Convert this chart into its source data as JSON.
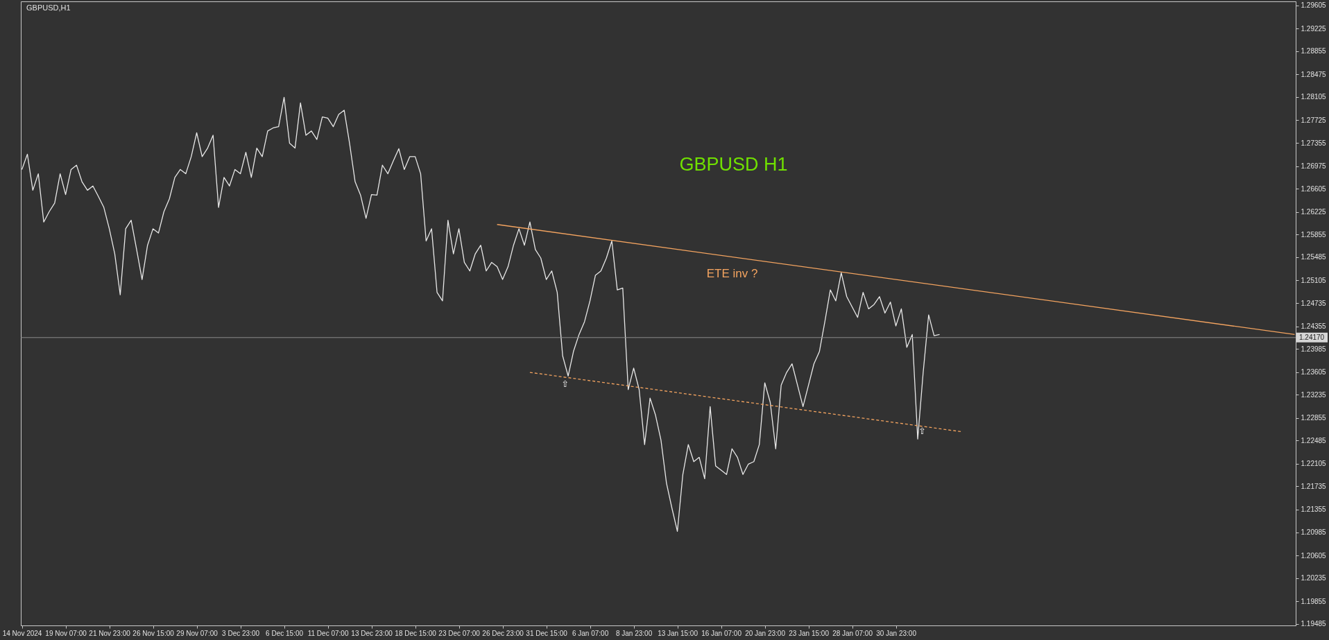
{
  "chart_data": {
    "type": "line",
    "title": "GBPUSD H1",
    "subtitle": "GBPUSD,H1",
    "annotations": [
      "ETE inv ?",
      "⇧",
      "⇧"
    ],
    "categories": [
      "14 Nov 2024",
      null,
      null,
      null,
      null,
      null,
      null,
      null,
      "19 Nov 07:00",
      null,
      null,
      null,
      null,
      null,
      null,
      null,
      "21 Nov 23:00",
      null,
      null,
      null,
      null,
      null,
      null,
      null,
      "26 Nov 15:00",
      null,
      null,
      null,
      null,
      null,
      null,
      null,
      "29 Nov 07:00",
      null,
      null,
      null,
      null,
      null,
      null,
      null,
      "3 Dec 23:00",
      null,
      null,
      null,
      null,
      null,
      null,
      null,
      "6 Dec 15:00",
      null,
      null,
      null,
      null,
      null,
      null,
      null,
      "11 Dec 07:00",
      null,
      null,
      null,
      null,
      null,
      null,
      null,
      "13 Dec 23:00",
      null,
      null,
      null,
      null,
      null,
      null,
      null,
      "18 Dec 15:00",
      null,
      null,
      null,
      null,
      null,
      null,
      null,
      "23 Dec 07:00",
      null,
      null,
      null,
      null,
      null,
      null,
      null,
      "26 Dec 23:00",
      null,
      null,
      null,
      null,
      null,
      null,
      null,
      "31 Dec 15:00",
      null,
      null,
      null,
      null,
      null,
      null,
      null,
      "6 Jan 07:00",
      null,
      null,
      null,
      null,
      null,
      null,
      null,
      "8 Jan 23:00",
      null,
      null,
      null,
      null,
      null,
      null,
      null,
      "13 Jan 15:00",
      null,
      null,
      null,
      null,
      null,
      null,
      null,
      "16 Jan 07:00",
      null,
      null,
      null,
      null,
      null,
      null,
      null,
      "20 Jan 23:00",
      null,
      null,
      null,
      null,
      null,
      null,
      null,
      "23 Jan 15:00",
      null,
      null,
      null,
      null,
      null,
      null,
      null,
      "28 Jan 07:00",
      null,
      null,
      null,
      null,
      null,
      null,
      null,
      "30 Jan 23:00",
      null,
      null,
      null,
      null,
      null,
      null,
      null,
      null,
      null,
      null,
      null,
      null,
      null,
      null,
      null,
      null,
      null,
      null,
      null,
      null,
      null,
      null,
      null,
      null,
      null,
      null,
      null,
      null,
      null,
      null,
      null,
      null,
      null,
      null,
      null,
      null,
      null,
      null,
      null,
      null,
      null,
      null,
      null,
      null,
      null,
      null,
      null,
      null,
      null,
      null,
      null,
      null,
      null,
      null,
      null,
      null,
      null,
      null,
      null,
      null,
      null,
      null,
      null,
      null,
      null,
      null,
      null,
      null,
      null,
      null,
      null,
      null,
      null
    ],
    "ylim": [
      1.1946,
      1.2967
    ],
    "yticks": [
      1.29605,
      1.29225,
      1.28855,
      1.28475,
      1.28105,
      1.27725,
      1.27355,
      1.26975,
      1.26605,
      1.26225,
      1.25855,
      1.25485,
      1.25105,
      1.24735,
      1.24355,
      1.23985,
      1.23605,
      1.23235,
      1.22855,
      1.22485,
      1.22105,
      1.21735,
      1.21355,
      1.20985,
      1.20605,
      1.20235,
      1.19855,
      1.19485
    ],
    "ref_lines": [
      {
        "axis": "y",
        "value": 1.2417,
        "label": "1.24170",
        "color": "#8c8c8c"
      }
    ],
    "series": [
      {
        "color": "#e8e8e8",
        "values": [
          1.2692,
          1.2717,
          1.2658,
          1.2685,
          1.2606,
          1.2623,
          1.2637,
          1.2685,
          1.2651,
          1.2692,
          1.2699,
          1.2672,
          1.2658,
          1.2665,
          1.2648,
          1.263,
          1.2595,
          1.2554,
          1.2487,
          1.2595,
          1.2609,
          1.2561,
          1.2512,
          1.2568,
          1.2595,
          1.2588,
          1.2623,
          1.2644,
          1.2679,
          1.2692,
          1.2685,
          1.2713,
          1.2752,
          1.2713,
          1.2727,
          1.2748,
          1.263,
          1.2679,
          1.2665,
          1.2692,
          1.2685,
          1.272,
          1.2679,
          1.2727,
          1.2713,
          1.2755,
          1.276,
          1.2762,
          1.281,
          1.2735,
          1.2727,
          1.2801,
          1.2748,
          1.2755,
          1.2741,
          1.2778,
          1.2776,
          1.2762,
          1.2782,
          1.2789,
          1.2734,
          1.2672,
          1.265,
          1.2612,
          1.2651,
          1.265,
          1.2699,
          1.2685,
          1.2706,
          1.2726,
          1.2692,
          1.2713,
          1.2713,
          1.2685,
          1.2575,
          1.2595,
          1.2491,
          1.2477,
          1.2609,
          1.2554,
          1.2595,
          1.254,
          1.2526,
          1.2554,
          1.2568,
          1.2526,
          1.254,
          1.2533,
          1.2512,
          1.2533,
          1.2568,
          1.2595,
          1.2568,
          1.2606,
          1.2561,
          1.2547,
          1.2512,
          1.2526,
          1.2491,
          1.2387,
          1.2354,
          1.2395,
          1.2422,
          1.2443,
          1.2477,
          1.2519,
          1.2526,
          1.2547,
          1.2575,
          1.2495,
          1.2498,
          1.2332,
          1.2367,
          1.2332,
          1.2242,
          1.2318,
          1.229,
          1.2249,
          1.2179,
          1.2138,
          1.21,
          1.2193,
          1.2242,
          1.2214,
          1.2221,
          1.2186,
          1.2304,
          1.2207,
          1.22,
          1.2193,
          1.2235,
          1.2221,
          1.2193,
          1.221,
          1.2214,
          1.2242,
          1.2343,
          1.2311,
          1.2235,
          1.2339,
          1.236,
          1.2374,
          1.2339,
          1.2304,
          1.2339,
          1.2374,
          1.2394,
          1.2443,
          1.2495,
          1.2477,
          1.2523,
          1.2484,
          1.2467,
          1.245,
          1.2491,
          1.2464,
          1.2471,
          1.2484,
          1.2457,
          1.2475,
          1.2436,
          1.2464,
          1.2401,
          1.2422,
          1.2251,
          1.236,
          1.2454,
          1.242,
          1.2422,
          null,
          null,
          null,
          null,
          null,
          null,
          null,
          null,
          null,
          null,
          null,
          null,
          null,
          null,
          null,
          null,
          null,
          null,
          null,
          null,
          null,
          null,
          null,
          null,
          null,
          null,
          null,
          null,
          null,
          null,
          null,
          null,
          null,
          null,
          null,
          null,
          null,
          null,
          null,
          null,
          null,
          null,
          null,
          null,
          null,
          null,
          null,
          null,
          null,
          null,
          null,
          null,
          null,
          null,
          null,
          null,
          null,
          null,
          null,
          null,
          null,
          null,
          null,
          null,
          null
        ]
      },
      {
        "color": "#f4a460",
        "values": [
          null,
          null,
          null,
          null,
          null,
          null,
          null,
          null,
          null,
          null,
          null,
          null,
          null,
          null,
          null,
          null,
          null,
          null,
          null,
          null,
          null,
          null,
          null,
          null,
          null,
          null,
          null,
          null,
          null,
          null,
          null,
          null,
          null,
          null,
          null,
          null,
          null,
          null,
          null,
          null,
          null,
          null,
          null,
          null,
          null,
          null,
          null,
          null,
          null,
          null,
          null,
          null,
          null,
          null,
          null,
          null,
          null,
          null,
          null,
          null,
          null,
          null,
          null,
          null,
          null,
          null,
          null,
          null,
          null,
          null,
          null,
          null,
          null,
          null,
          null,
          null,
          null,
          null,
          null,
          null,
          null,
          null,
          null,
          null,
          null,
          null,
          null,
          1.2602,
          null,
          null,
          null,
          null,
          null,
          null,
          null,
          null,
          null,
          null,
          null,
          null,
          null,
          null,
          null,
          null,
          null,
          null,
          null,
          null,
          null,
          null,
          null,
          null,
          null,
          null,
          null,
          null,
          null,
          null,
          null,
          null,
          null,
          null,
          null,
          null,
          null,
          null,
          null,
          null,
          null,
          null,
          null,
          null,
          null,
          null,
          null,
          null,
          null,
          null,
          null,
          null,
          null,
          null,
          null,
          null,
          null,
          null,
          null,
          null,
          null,
          null,
          null,
          null,
          null,
          null,
          null,
          null,
          null,
          null,
          null,
          null,
          null,
          null,
          null,
          null,
          null,
          null,
          null,
          null,
          null,
          null,
          null,
          null,
          null,
          null,
          null,
          null,
          null,
          null,
          null,
          null,
          null,
          null,
          null,
          null,
          null,
          null,
          null,
          null,
          null,
          null,
          null,
          null,
          null,
          null,
          null,
          null,
          null,
          null,
          null,
          null,
          null,
          null,
          null,
          null,
          null,
          null,
          null,
          null,
          null,
          null,
          null,
          null,
          null,
          null,
          null,
          null,
          null,
          null,
          null,
          null,
          null,
          null,
          null,
          null,
          null,
          null,
          null,
          null,
          null,
          null,
          null,
          null,
          null,
          1.2422
        ]
      },
      {
        "color": "#f4a460",
        "line_style": "dashed",
        "values": [
          null,
          null,
          null,
          null,
          null,
          null,
          null,
          null,
          null,
          null,
          null,
          null,
          null,
          null,
          null,
          null,
          null,
          null,
          null,
          null,
          null,
          null,
          null,
          null,
          null,
          null,
          null,
          null,
          null,
          null,
          null,
          null,
          null,
          null,
          null,
          null,
          null,
          null,
          null,
          null,
          null,
          null,
          null,
          null,
          null,
          null,
          null,
          null,
          null,
          null,
          null,
          null,
          null,
          null,
          null,
          null,
          null,
          null,
          null,
          null,
          null,
          null,
          null,
          null,
          null,
          null,
          null,
          null,
          null,
          null,
          null,
          null,
          null,
          null,
          null,
          null,
          null,
          null,
          null,
          null,
          null,
          null,
          null,
          null,
          null,
          null,
          null,
          null,
          null,
          null,
          null,
          null,
          null,
          1.236,
          null,
          null,
          null,
          null,
          null,
          null,
          null,
          null,
          null,
          null,
          null,
          null,
          null,
          null,
          null,
          null,
          null,
          null,
          null,
          null,
          null,
          null,
          null,
          null,
          null,
          null,
          null,
          null,
          null,
          null,
          null,
          null,
          null,
          null,
          null,
          null,
          null,
          null,
          null,
          null,
          null,
          null,
          null,
          null,
          null,
          null,
          null,
          null,
          null,
          null,
          null,
          null,
          null,
          null,
          null,
          null,
          null,
          null,
          null,
          null,
          null,
          null,
          null,
          null,
          null,
          null,
          null,
          null,
          null,
          null,
          null,
          null,
          null,
          null,
          null,
          null,
          null,
          null,
          1.2263,
          null,
          null,
          null,
          null,
          null,
          null,
          null,
          null,
          null,
          null,
          null,
          null,
          null,
          null,
          null,
          null,
          null,
          null,
          null,
          null,
          null,
          null,
          null,
          null,
          null,
          null,
          null,
          null,
          null,
          null,
          null,
          null,
          null,
          null,
          null,
          null,
          null,
          null,
          null,
          null,
          null,
          null,
          null,
          null,
          null,
          null,
          null,
          null,
          null,
          null,
          null,
          null,
          null,
          null,
          null,
          null,
          null,
          null,
          null,
          null,
          null
        ]
      }
    ]
  }
}
